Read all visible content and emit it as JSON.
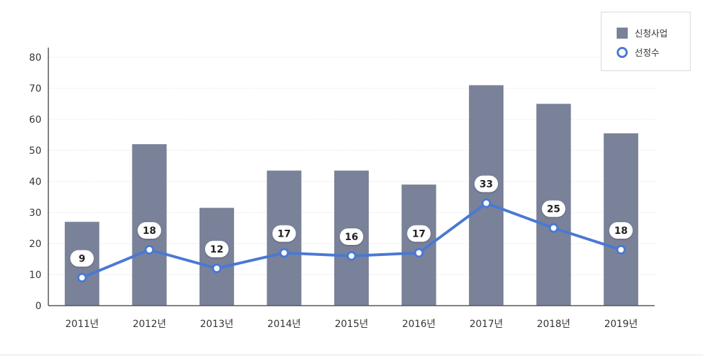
{
  "chart_data": {
    "type": "bar",
    "categories": [
      "2011년",
      "2012년",
      "2013년",
      "2014년",
      "2015년",
      "2016년",
      "2017년",
      "2018년",
      "2019년"
    ],
    "series": [
      {
        "name": "신청사업",
        "type": "bar",
        "values": [
          27,
          52,
          31.5,
          43.5,
          43.5,
          39,
          71,
          65,
          55.5
        ]
      },
      {
        "name": "선정수",
        "type": "line",
        "values": [
          9,
          18,
          12,
          17,
          16,
          17,
          33,
          25,
          18
        ]
      }
    ],
    "y_ticks": [
      "0",
      "10",
      "20",
      "30",
      "40",
      "50",
      "60",
      "70",
      "80"
    ],
    "ylim": [
      0,
      80
    ],
    "grid": true,
    "legend_position": "top-right",
    "colors": {
      "bar": "#7a8299",
      "line": "#4a78d4",
      "axis": "#555555",
      "grid": "#e6e6e6"
    }
  }
}
